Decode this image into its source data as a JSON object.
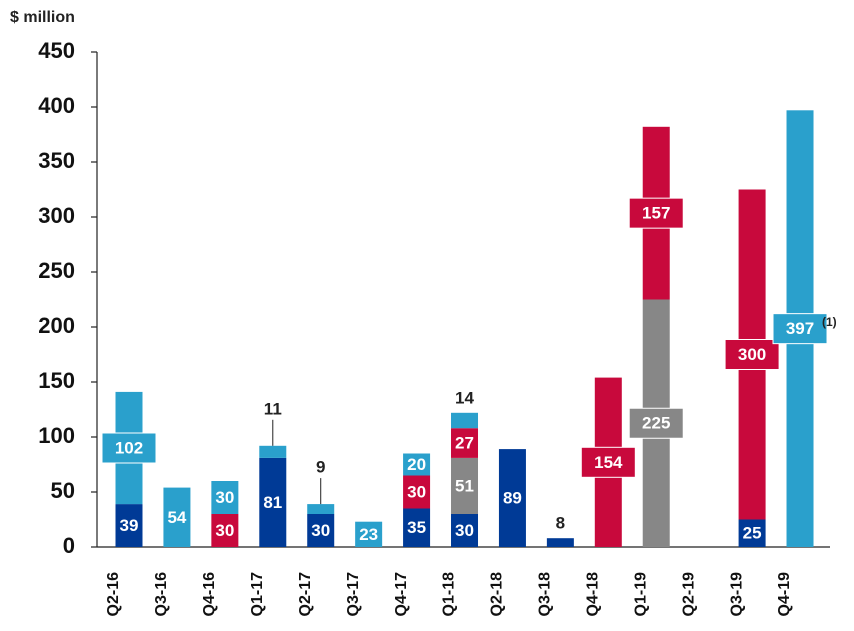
{
  "chart_data": {
    "type": "bar",
    "stacked": true,
    "y_label": "$ million",
    "categories": [
      "Q2-16",
      "Q3-16",
      "Q4-16",
      "Q1-17",
      "Q2-17",
      "Q3-17",
      "Q4-17",
      "Q1-18",
      "Q2-18",
      "Q3-18",
      "Q4-18",
      "Q1-19",
      "Q2-19",
      "Q3-19",
      "Q4-19"
    ],
    "series": [
      {
        "color": "#003a96",
        "values": [
          39,
          null,
          null,
          81,
          30,
          null,
          35,
          30,
          89,
          8,
          null,
          null,
          null,
          25,
          null
        ]
      },
      {
        "color": "#878787",
        "values": [
          null,
          null,
          null,
          null,
          null,
          null,
          null,
          51,
          null,
          null,
          null,
          225,
          null,
          null,
          null
        ]
      },
      {
        "color": "#c8093c",
        "values": [
          null,
          null,
          30,
          null,
          null,
          null,
          30,
          27,
          null,
          null,
          154,
          157,
          null,
          300,
          null
        ]
      },
      {
        "color": "#2aa0cc",
        "values": [
          102,
          54,
          30,
          11,
          9,
          23,
          20,
          14,
          null,
          null,
          null,
          null,
          null,
          null,
          397
        ]
      }
    ],
    "annotations": [
      {
        "category": 14,
        "text": "(1)"
      }
    ],
    "ylim": [
      0,
      450
    ],
    "yticks": [
      0,
      50,
      100,
      150,
      200,
      250,
      300,
      350,
      400,
      450
    ]
  }
}
